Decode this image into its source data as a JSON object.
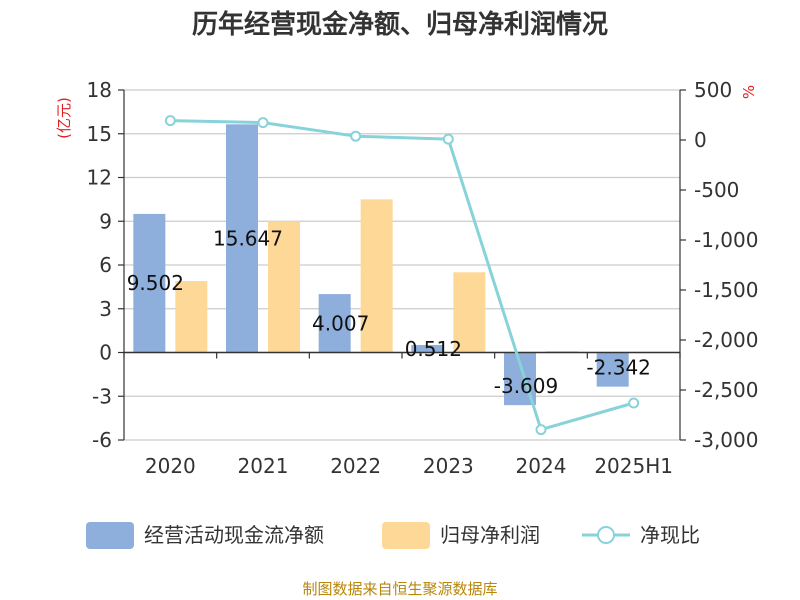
{
  "chart_data": {
    "type": "bar",
    "title": "历年经营现金净额、归母净利润情况",
    "categories": [
      "2020",
      "2021",
      "2022",
      "2023",
      "2024",
      "2025H1"
    ],
    "y_left": {
      "unit_label": "(亿元)",
      "lim": [
        -6,
        18
      ],
      "ticks": [
        -6,
        -3,
        0,
        3,
        6,
        9,
        12,
        15,
        18
      ]
    },
    "y_right": {
      "unit_label": "%",
      "lim": [
        -3000,
        500
      ],
      "ticks": [
        500,
        0,
        -500,
        -1000,
        -1500,
        -2000,
        -2500,
        -3000
      ],
      "tick_labels": [
        "500",
        "0",
        "-500",
        "-1,000",
        "-1,500",
        "-2,000",
        "-2,500",
        "-3,000"
      ]
    },
    "grid": true,
    "legend_position": "bottom",
    "series": [
      {
        "name": "经营活动现金流净额",
        "type": "bar",
        "axis": "left",
        "color": "#8eaedc",
        "values": [
          9.502,
          15.647,
          4.007,
          0.512,
          -3.609,
          -2.342
        ],
        "labels": [
          "9.502",
          "15.647",
          "4.007",
          "0.512",
          "-3.609",
          "-2.342"
        ]
      },
      {
        "name": "归母净利润",
        "type": "bar",
        "axis": "left",
        "color": "#fdd896",
        "values": [
          4.9,
          9.0,
          10.5,
          5.5,
          0.1,
          0.05
        ]
      },
      {
        "name": "净现比",
        "type": "line",
        "axis": "right",
        "color": "#88d3d9",
        "values": [
          194,
          174,
          38,
          9,
          -2896,
          -2630
        ]
      }
    ]
  },
  "source": "制图数据来自恒生聚源数据库"
}
